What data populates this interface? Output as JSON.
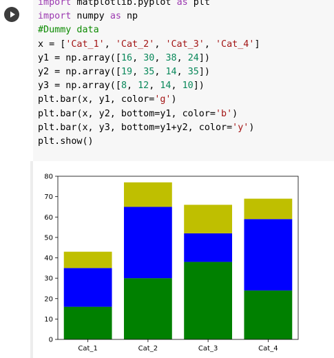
{
  "notebook": {
    "run_button": {
      "icon": "play-icon"
    },
    "code_lines": [
      [
        {
          "t": "import",
          "c": "kw"
        },
        {
          "t": " matplotlib.pyplot ",
          "c": ""
        },
        {
          "t": "as",
          "c": "kw"
        },
        {
          "t": " plt",
          "c": ""
        }
      ],
      [
        {
          "t": "import",
          "c": "kw"
        },
        {
          "t": " numpy ",
          "c": ""
        },
        {
          "t": "as",
          "c": "kw"
        },
        {
          "t": " np",
          "c": ""
        }
      ],
      [
        {
          "t": "#Dummy data",
          "c": "cm"
        }
      ],
      [
        {
          "t": "x = [",
          "c": ""
        },
        {
          "t": "'Cat_1'",
          "c": "str"
        },
        {
          "t": ", ",
          "c": ""
        },
        {
          "t": "'Cat_2'",
          "c": "str"
        },
        {
          "t": ", ",
          "c": ""
        },
        {
          "t": "'Cat_3'",
          "c": "str"
        },
        {
          "t": ", ",
          "c": ""
        },
        {
          "t": "'Cat_4'",
          "c": "str"
        },
        {
          "t": "]",
          "c": ""
        }
      ],
      [
        {
          "t": "y1 = np.array([",
          "c": ""
        },
        {
          "t": "16",
          "c": "num"
        },
        {
          "t": ", ",
          "c": ""
        },
        {
          "t": "30",
          "c": "num"
        },
        {
          "t": ", ",
          "c": ""
        },
        {
          "t": "38",
          "c": "num"
        },
        {
          "t": ", ",
          "c": ""
        },
        {
          "t": "24",
          "c": "num"
        },
        {
          "t": "])",
          "c": ""
        }
      ],
      [
        {
          "t": "y2 = np.array([",
          "c": ""
        },
        {
          "t": "19",
          "c": "num"
        },
        {
          "t": ", ",
          "c": ""
        },
        {
          "t": "35",
          "c": "num"
        },
        {
          "t": ", ",
          "c": ""
        },
        {
          "t": "14",
          "c": "num"
        },
        {
          "t": ", ",
          "c": ""
        },
        {
          "t": "35",
          "c": "num"
        },
        {
          "t": "])",
          "c": ""
        }
      ],
      [
        {
          "t": "y3 = np.array([",
          "c": ""
        },
        {
          "t": "8",
          "c": "num"
        },
        {
          "t": ", ",
          "c": ""
        },
        {
          "t": "12",
          "c": "num"
        },
        {
          "t": ", ",
          "c": ""
        },
        {
          "t": "14",
          "c": "num"
        },
        {
          "t": ", ",
          "c": ""
        },
        {
          "t": "10",
          "c": "num"
        },
        {
          "t": "])",
          "c": ""
        }
      ],
      [
        {
          "t": "plt.bar(x, y1, color=",
          "c": ""
        },
        {
          "t": "'g'",
          "c": "str"
        },
        {
          "t": ")",
          "c": ""
        }
      ],
      [
        {
          "t": "plt.bar(x, y2, bottom=y1, color=",
          "c": ""
        },
        {
          "t": "'b'",
          "c": "str"
        },
        {
          "t": ")",
          "c": ""
        }
      ],
      [
        {
          "t": "plt.bar(x, y3, bottom=y1+y2, color=",
          "c": ""
        },
        {
          "t": "'y'",
          "c": "str"
        },
        {
          "t": ")",
          "c": ""
        }
      ],
      [
        {
          "t": "plt.show()",
          "c": ""
        }
      ]
    ]
  },
  "colors": {
    "keyword": "#9b38b0",
    "comment": "#0b8a00",
    "number": "#09885a",
    "string": "#a31515",
    "run_button": "#3c3c3c"
  },
  "chart_data": {
    "type": "bar",
    "stacked": true,
    "categories": [
      "Cat_1",
      "Cat_2",
      "Cat_3",
      "Cat_4"
    ],
    "series": [
      {
        "values": [
          16,
          30,
          38,
          24
        ],
        "color": "#008000"
      },
      {
        "values": [
          19,
          35,
          14,
          35
        ],
        "color": "#0000ff"
      },
      {
        "values": [
          8,
          12,
          14,
          10
        ],
        "color": "#bfbf00"
      }
    ],
    "ylim": [
      0,
      80
    ],
    "yticks": [
      0,
      10,
      20,
      30,
      40,
      50,
      60,
      70,
      80
    ],
    "grid": false,
    "title": "",
    "xlabel": "",
    "ylabel": ""
  }
}
